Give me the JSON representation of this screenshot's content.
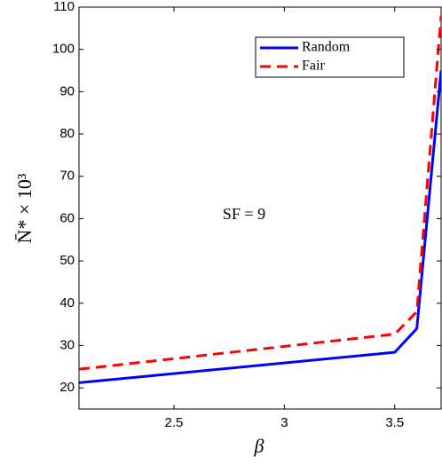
{
  "chart_data": {
    "type": "line",
    "x": [
      2.07,
      3.5,
      3.6,
      3.71
    ],
    "series": [
      {
        "name": "Random",
        "color": "#0000ff",
        "dash": "solid",
        "values": [
          21.2,
          28.4,
          34,
          95
        ]
      },
      {
        "name": "Fair",
        "color": "#ff0000",
        "dash": "dashed",
        "values": [
          24.4,
          32.7,
          38,
          108
        ]
      }
    ],
    "xlim": [
      2.07,
      3.71
    ],
    "ylim": [
      15,
      110
    ],
    "xticks": [
      2.5,
      3,
      3.5
    ],
    "yticks": [
      20,
      30,
      40,
      50,
      60,
      70,
      80,
      90,
      100,
      110
    ],
    "xlabel": "β",
    "ylabel": "N̄* × 10³",
    "annotation": "SF = 9",
    "grid": false,
    "legend": "upper right"
  }
}
